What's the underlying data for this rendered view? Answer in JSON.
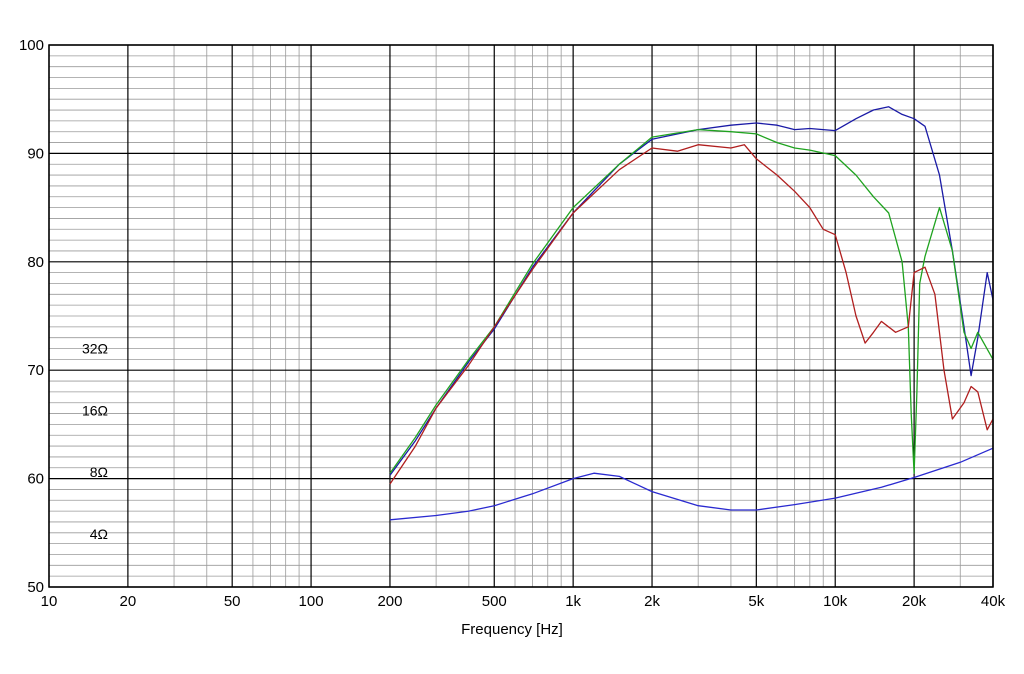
{
  "chart_data": {
    "type": "line",
    "title": "",
    "xlabel": "Frequency [Hz]",
    "ylabel": "",
    "x_scale": "log",
    "xlim": [
      10,
      40000
    ],
    "ylim": [
      50,
      100
    ],
    "grid": true,
    "x_ticks": [
      {
        "v": 10,
        "label": "10"
      },
      {
        "v": 20,
        "label": "20"
      },
      {
        "v": 50,
        "label": "50"
      },
      {
        "v": 100,
        "label": "100"
      },
      {
        "v": 200,
        "label": "200"
      },
      {
        "v": 500,
        "label": "500"
      },
      {
        "v": 1000,
        "label": "1k"
      },
      {
        "v": 2000,
        "label": "2k"
      },
      {
        "v": 5000,
        "label": "5k"
      },
      {
        "v": 10000,
        "label": "10k"
      },
      {
        "v": 20000,
        "label": "20k"
      },
      {
        "v": 40000,
        "label": "40k"
      }
    ],
    "y_ticks": [
      50,
      60,
      70,
      80,
      90,
      100
    ],
    "impedance_labels": [
      {
        "label": "32Ω",
        "y": 72
      },
      {
        "label": "16Ω",
        "y": 66.3
      },
      {
        "label": "8Ω",
        "y": 60.6
      },
      {
        "label": "4Ω",
        "y": 54.9
      }
    ],
    "series": [
      {
        "color": "#1a1aa6",
        "points": [
          [
            200,
            60.3
          ],
          [
            250,
            63.5
          ],
          [
            300,
            66.5
          ],
          [
            400,
            70.8
          ],
          [
            500,
            73.8
          ],
          [
            700,
            79.5
          ],
          [
            1000,
            84.5
          ],
          [
            1500,
            89.0
          ],
          [
            2000,
            91.3
          ],
          [
            3000,
            92.2
          ],
          [
            4000,
            92.6
          ],
          [
            5000,
            92.8
          ],
          [
            6000,
            92.6
          ],
          [
            7000,
            92.2
          ],
          [
            8000,
            92.3
          ],
          [
            10000,
            92.1
          ],
          [
            12000,
            93.2
          ],
          [
            14000,
            94.0
          ],
          [
            16000,
            94.3
          ],
          [
            18000,
            93.6
          ],
          [
            20000,
            93.2
          ],
          [
            22000,
            92.5
          ],
          [
            25000,
            88.0
          ],
          [
            28000,
            81.0
          ],
          [
            31000,
            74.0
          ],
          [
            33000,
            69.5
          ],
          [
            35000,
            73.0
          ],
          [
            38000,
            79.0
          ],
          [
            40000,
            76.5
          ]
        ]
      },
      {
        "color": "#1fa31f",
        "points": [
          [
            200,
            60.5
          ],
          [
            250,
            63.8
          ],
          [
            300,
            66.8
          ],
          [
            400,
            71.0
          ],
          [
            500,
            74.0
          ],
          [
            700,
            79.8
          ],
          [
            1000,
            85.0
          ],
          [
            1500,
            89.0
          ],
          [
            2000,
            91.5
          ],
          [
            3000,
            92.2
          ],
          [
            4000,
            92.0
          ],
          [
            5000,
            91.8
          ],
          [
            6000,
            91.0
          ],
          [
            7000,
            90.5
          ],
          [
            8000,
            90.3
          ],
          [
            10000,
            89.8
          ],
          [
            12000,
            88.0
          ],
          [
            14000,
            86.0
          ],
          [
            16000,
            84.5
          ],
          [
            18000,
            80.0
          ],
          [
            19000,
            74.0
          ],
          [
            19500,
            66.0
          ],
          [
            20000,
            60.5
          ],
          [
            20500,
            68.0
          ],
          [
            21000,
            78.0
          ],
          [
            22000,
            80.5
          ],
          [
            25000,
            85.0
          ],
          [
            28000,
            81.0
          ],
          [
            31000,
            73.5
          ],
          [
            33000,
            72.0
          ],
          [
            35000,
            73.5
          ],
          [
            40000,
            71.0
          ]
        ]
      },
      {
        "color": "#b01e1e",
        "points": [
          [
            200,
            59.5
          ],
          [
            250,
            63.0
          ],
          [
            300,
            66.5
          ],
          [
            400,
            70.5
          ],
          [
            500,
            74.0
          ],
          [
            700,
            79.3
          ],
          [
            1000,
            84.5
          ],
          [
            1500,
            88.5
          ],
          [
            2000,
            90.5
          ],
          [
            2500,
            90.2
          ],
          [
            3000,
            90.8
          ],
          [
            4000,
            90.5
          ],
          [
            4500,
            90.8
          ],
          [
            5000,
            89.5
          ],
          [
            6000,
            88.0
          ],
          [
            7000,
            86.5
          ],
          [
            8000,
            85.0
          ],
          [
            9000,
            83.0
          ],
          [
            10000,
            82.5
          ],
          [
            11000,
            79.0
          ],
          [
            12000,
            75.0
          ],
          [
            13000,
            72.5
          ],
          [
            14000,
            73.5
          ],
          [
            15000,
            74.5
          ],
          [
            17000,
            73.5
          ],
          [
            19000,
            74.0
          ],
          [
            20000,
            79.0
          ],
          [
            22000,
            79.5
          ],
          [
            24000,
            77.0
          ],
          [
            26000,
            70.0
          ],
          [
            28000,
            65.5
          ],
          [
            31000,
            67.0
          ],
          [
            33000,
            68.5
          ],
          [
            35000,
            68.0
          ],
          [
            38000,
            64.5
          ],
          [
            40000,
            65.5
          ]
        ]
      },
      {
        "color": "#2a2ad0",
        "points": [
          [
            200,
            56.2
          ],
          [
            300,
            56.6
          ],
          [
            400,
            57.0
          ],
          [
            500,
            57.5
          ],
          [
            700,
            58.6
          ],
          [
            1000,
            60.0
          ],
          [
            1200,
            60.5
          ],
          [
            1500,
            60.2
          ],
          [
            2000,
            58.8
          ],
          [
            3000,
            57.5
          ],
          [
            4000,
            57.1
          ],
          [
            5000,
            57.1
          ],
          [
            7000,
            57.6
          ],
          [
            10000,
            58.2
          ],
          [
            15000,
            59.2
          ],
          [
            20000,
            60.1
          ],
          [
            30000,
            61.5
          ],
          [
            40000,
            62.8
          ]
        ]
      }
    ]
  }
}
